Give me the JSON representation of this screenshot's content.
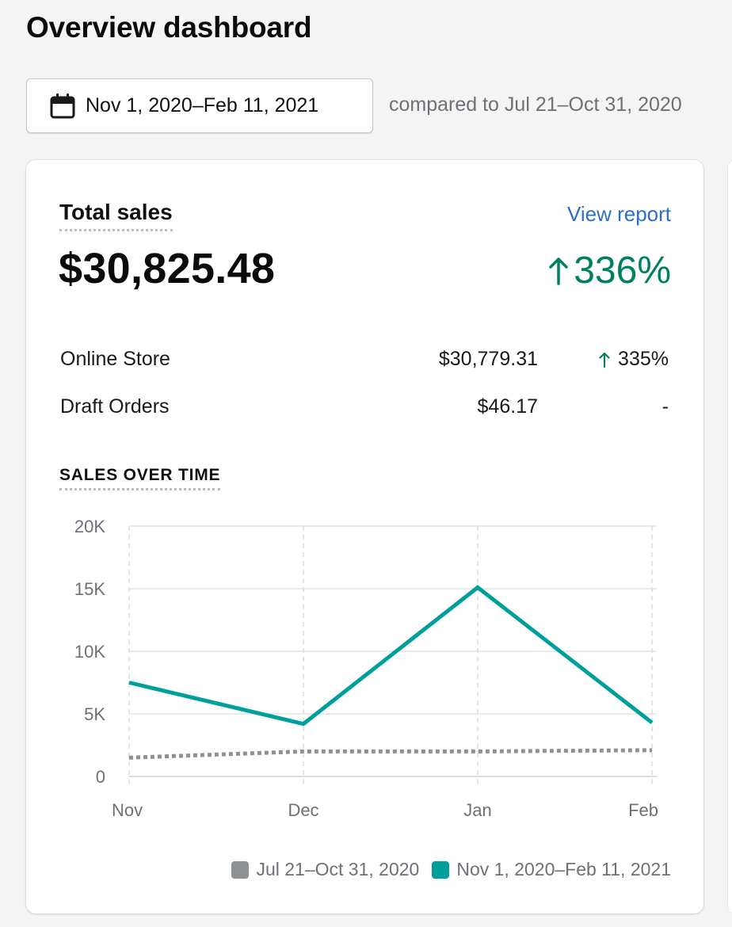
{
  "header": {
    "title": "Overview dashboard",
    "date_range": "Nov 1, 2020–Feb 11, 2021",
    "compare_text": "compared to Jul 21–Oct 31, 2020",
    "calendar_icon": "calendar-icon"
  },
  "card": {
    "title": "Total sales",
    "view_report": "View report",
    "total": "$30,825.48",
    "change": "336%",
    "change_direction": "up",
    "positive_color": "#008060",
    "link_color": "#2c6ecb",
    "breakdown": [
      {
        "name": "Online Store",
        "amount": "$30,779.31",
        "change": "335%",
        "direction": "up"
      },
      {
        "name": "Draft Orders",
        "amount": "$46.17",
        "change": "-",
        "direction": "none"
      }
    ],
    "chart_heading": "SALES OVER TIME"
  },
  "chart_data": {
    "type": "line",
    "title": "SALES OVER TIME",
    "x": [
      "Nov",
      "Dec",
      "Jan",
      "Feb"
    ],
    "ylim": [
      0,
      20000
    ],
    "yticks": [
      0,
      5000,
      10000,
      15000,
      20000
    ],
    "ytick_labels": [
      "0",
      "5K",
      "10K",
      "15K",
      "20K"
    ],
    "grid": true,
    "legend_position": "bottom-right",
    "series": [
      {
        "name": "Jul 21–Oct 31, 2020",
        "values": [
          1500,
          2000,
          2000,
          2100
        ],
        "color": "#8c9196",
        "style": "dotted"
      },
      {
        "name": "Nov 1, 2020–Feb 11, 2021",
        "values": [
          7500,
          4200,
          15100,
          4300
        ],
        "color": "#00a09a",
        "style": "solid"
      }
    ]
  }
}
